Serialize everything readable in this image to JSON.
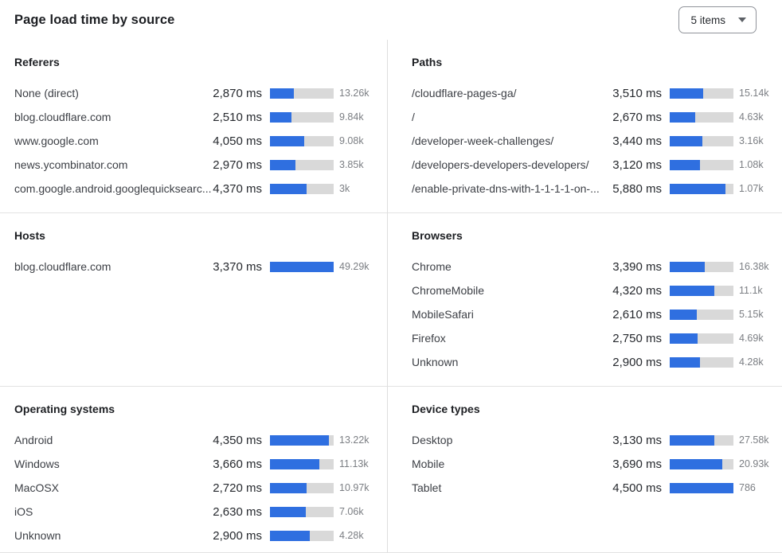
{
  "header": {
    "title": "Page load time by source",
    "items_select": {
      "value": "5 items"
    }
  },
  "colors": {
    "bar_fill": "#2f6fe0",
    "bar_track": "#d9d9d9",
    "divider": "#e3e3e3"
  },
  "panels": [
    {
      "title": "Referers",
      "rows": [
        {
          "label": "None (direct)",
          "ms": 2870,
          "value": "2,870 ms",
          "count": "13.26k",
          "bar_pct": 38
        },
        {
          "label": "blog.cloudflare.com",
          "ms": 2510,
          "value": "2,510 ms",
          "count": "9.84k",
          "bar_pct": 34
        },
        {
          "label": "www.google.com",
          "ms": 4050,
          "value": "4,050 ms",
          "count": "9.08k",
          "bar_pct": 54
        },
        {
          "label": "news.ycombinator.com",
          "ms": 2970,
          "value": "2,970 ms",
          "count": "3.85k",
          "bar_pct": 40
        },
        {
          "label": "com.google.android.googlequicksearc...",
          "ms": 4370,
          "value": "4,370 ms",
          "count": "3k",
          "bar_pct": 58
        }
      ]
    },
    {
      "title": "Paths",
      "rows": [
        {
          "label": "/cloudflare-pages-ga/",
          "ms": 3510,
          "value": "3,510 ms",
          "count": "15.14k",
          "bar_pct": 52
        },
        {
          "label": "/",
          "ms": 2670,
          "value": "2,670 ms",
          "count": "4.63k",
          "bar_pct": 40
        },
        {
          "label": "/developer-week-challenges/",
          "ms": 3440,
          "value": "3,440 ms",
          "count": "3.16k",
          "bar_pct": 51
        },
        {
          "label": "/developers-developers-developers/",
          "ms": 3120,
          "value": "3,120 ms",
          "count": "1.08k",
          "bar_pct": 47
        },
        {
          "label": "/enable-private-dns-with-1-1-1-1-on-...",
          "ms": 5880,
          "value": "5,880 ms",
          "count": "1.07k",
          "bar_pct": 88
        }
      ]
    },
    {
      "title": "Hosts",
      "rows": [
        {
          "label": "blog.cloudflare.com",
          "ms": 3370,
          "value": "3,370 ms",
          "count": "49.29k",
          "bar_pct": 100
        }
      ]
    },
    {
      "title": "Browsers",
      "rows": [
        {
          "label": "Chrome",
          "ms": 3390,
          "value": "3,390 ms",
          "count": "16.38k",
          "bar_pct": 55
        },
        {
          "label": "ChromeMobile",
          "ms": 4320,
          "value": "4,320 ms",
          "count": "11.1k",
          "bar_pct": 70
        },
        {
          "label": "MobileSafari",
          "ms": 2610,
          "value": "2,610 ms",
          "count": "5.15k",
          "bar_pct": 42
        },
        {
          "label": "Firefox",
          "ms": 2750,
          "value": "2,750 ms",
          "count": "4.69k",
          "bar_pct": 44
        },
        {
          "label": "Unknown",
          "ms": 2900,
          "value": "2,900 ms",
          "count": "4.28k",
          "bar_pct": 47
        }
      ]
    },
    {
      "title": "Operating systems",
      "rows": [
        {
          "label": "Android",
          "ms": 4350,
          "value": "4,350 ms",
          "count": "13.22k",
          "bar_pct": 93
        },
        {
          "label": "Windows",
          "ms": 3660,
          "value": "3,660 ms",
          "count": "11.13k",
          "bar_pct": 78
        },
        {
          "label": "MacOSX",
          "ms": 2720,
          "value": "2,720 ms",
          "count": "10.97k",
          "bar_pct": 58
        },
        {
          "label": "iOS",
          "ms": 2630,
          "value": "2,630 ms",
          "count": "7.06k",
          "bar_pct": 56
        },
        {
          "label": "Unknown",
          "ms": 2900,
          "value": "2,900 ms",
          "count": "4.28k",
          "bar_pct": 62
        }
      ]
    },
    {
      "title": "Device types",
      "rows": [
        {
          "label": "Desktop",
          "ms": 3130,
          "value": "3,130 ms",
          "count": "27.58k",
          "bar_pct": 70
        },
        {
          "label": "Mobile",
          "ms": 3690,
          "value": "3,690 ms",
          "count": "20.93k",
          "bar_pct": 82
        },
        {
          "label": "Tablet",
          "ms": 4500,
          "value": "4,500 ms",
          "count": "786",
          "bar_pct": 100
        }
      ]
    }
  ]
}
